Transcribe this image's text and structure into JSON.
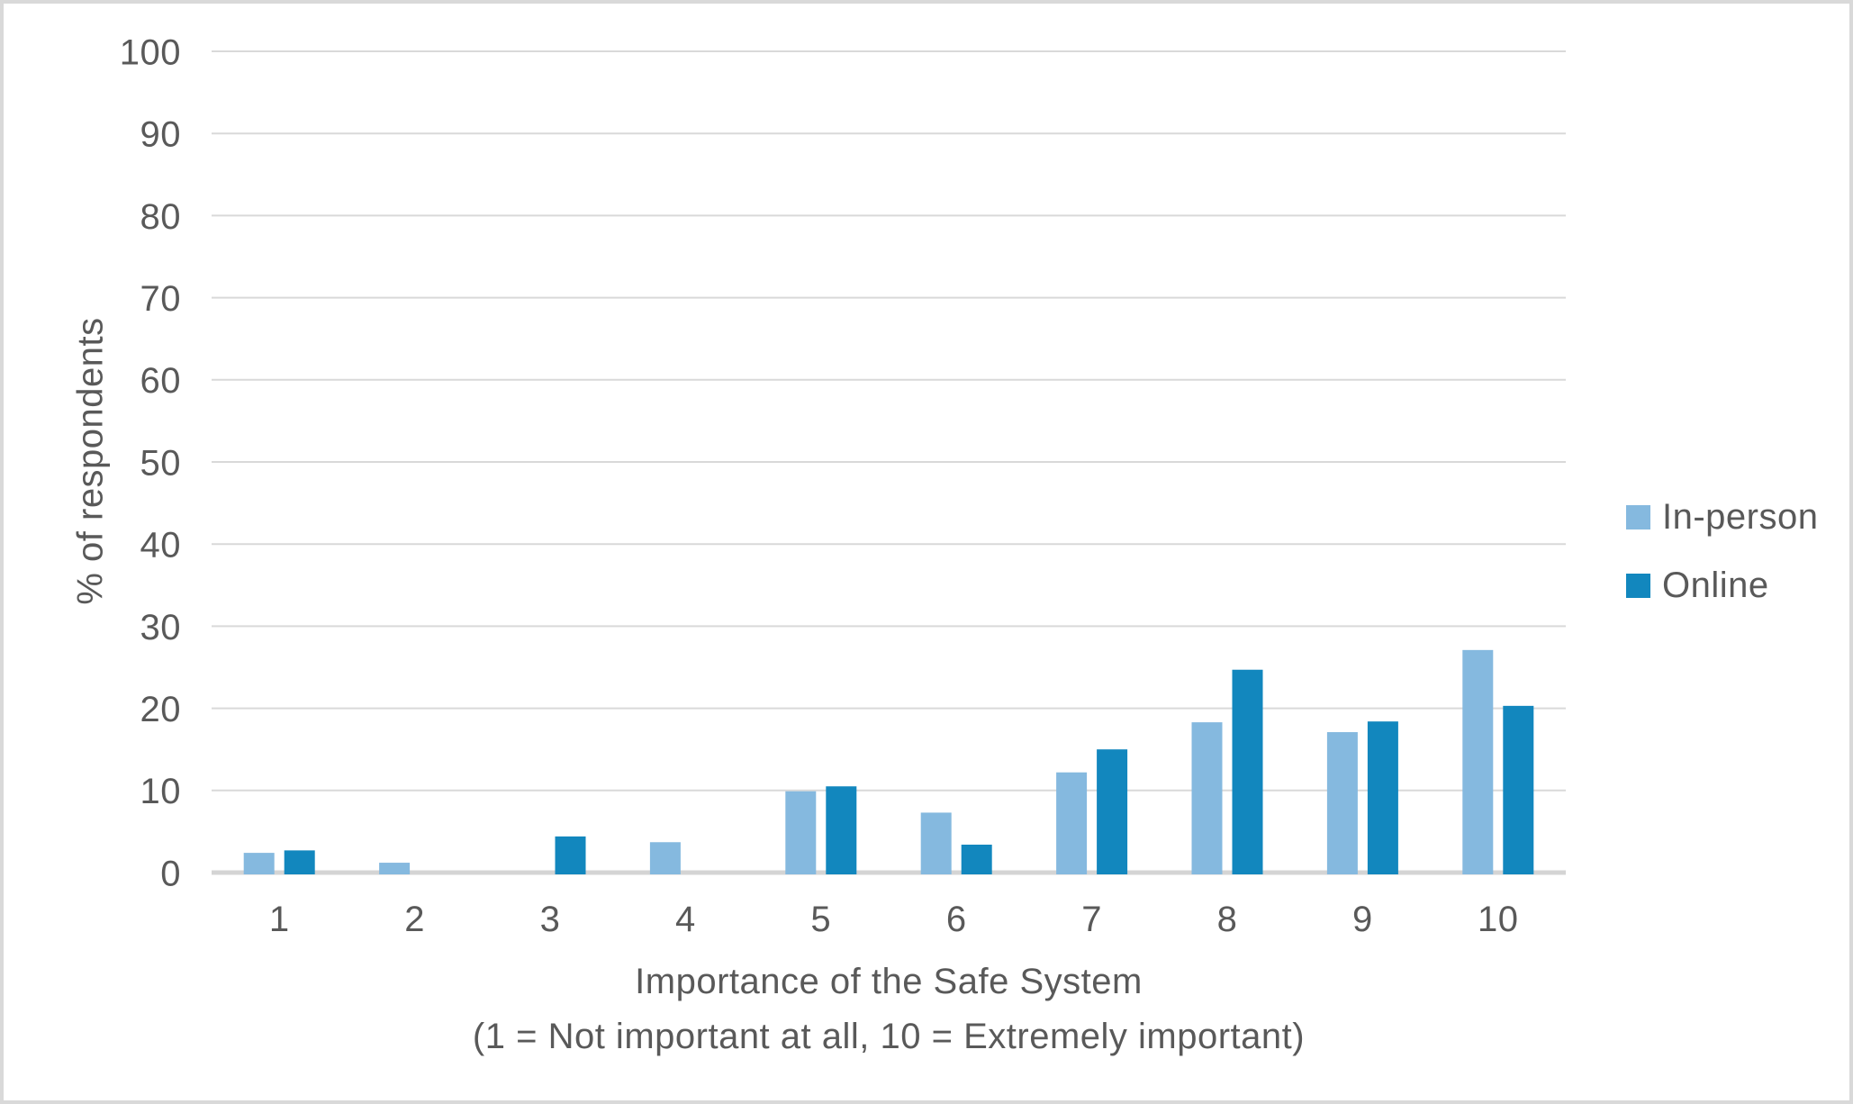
{
  "figure": {
    "background": "#ffffff",
    "border_color": "#d9d9d9"
  },
  "chart_data": {
    "type": "bar",
    "title": "",
    "xlabel": "Importance of the Safe System",
    "xlabel_note": "(1 = Not important at all, 10 = Extremely important)",
    "ylabel": "% of respondents",
    "categories": [
      "1",
      "2",
      "3",
      "4",
      "5",
      "6",
      "7",
      "8",
      "9",
      "10"
    ],
    "series": [
      {
        "name": "In-person",
        "color": "#85b9df",
        "values": [
          2.4,
          1.2,
          0,
          3.7,
          9.9,
          7.3,
          12.2,
          18.3,
          17.1,
          27.1
        ]
      },
      {
        "name": "Online",
        "color": "#1287be",
        "values": [
          2.7,
          0,
          4.4,
          0,
          10.5,
          3.4,
          15.0,
          24.7,
          18.4,
          20.3
        ]
      }
    ],
    "ylim": [
      0,
      100
    ],
    "y_ticks": [
      0,
      10,
      20,
      30,
      40,
      50,
      60,
      70,
      80,
      90,
      100
    ],
    "grid": "horizontal-only",
    "legend_position": "middle-right",
    "colors": {
      "gridline": "#d9d9d9",
      "axis_line": "#d4d4d4",
      "text": "#595959"
    }
  }
}
